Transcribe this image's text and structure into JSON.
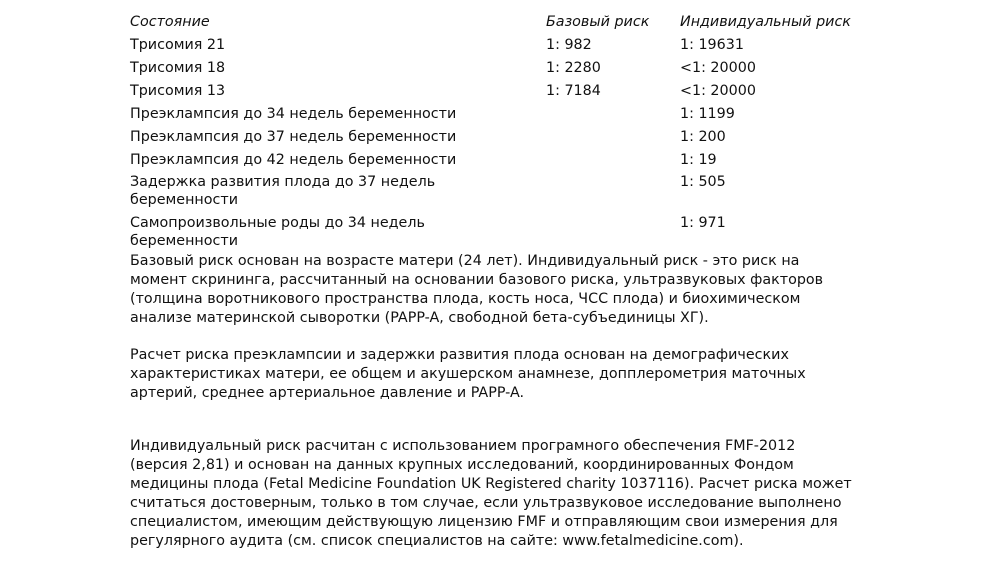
{
  "table": {
    "headers": [
      "Состояние",
      "Базовый риск",
      "Индивидуальный риск"
    ],
    "rows": [
      {
        "condition": "Трисомия 21",
        "base": "1: 982",
        "individual": "1: 19631"
      },
      {
        "condition": "Трисомия 18",
        "base": "1: 2280",
        "individual": "<1: 20000"
      },
      {
        "condition": "Трисомия 13",
        "base": "1: 7184",
        "individual": "<1: 20000"
      },
      {
        "condition": "Преэклампсия до 34 недель беременности",
        "base": "",
        "individual": "1: 1199"
      },
      {
        "condition": "Преэклампсия до 37 недель беременности",
        "base": "",
        "individual": "1: 200"
      },
      {
        "condition": "Преэклампсия до 42 недель беременности",
        "base": "",
        "individual": "1: 19"
      },
      {
        "condition": "Задержка развития плода до 37 недель беременности",
        "base": "",
        "individual": "1: 505"
      },
      {
        "condition": "Самопроизвольные роды до 34 недель беременности",
        "base": "",
        "individual": "1: 971"
      }
    ]
  },
  "paragraphs": [
    [
      "Базовый риск основан на возрасте матери (24 лет). Индивидуальный риск - это риск на",
      "момент скрининга, рассчитанный на основании базового риска, ультразвуковых факторов",
      "(толщина воротникового пространства плода, кость носа, ЧСС плода) и биохимическом",
      "анализе материнской сыворотки (PAPP-A, свободной бета-субъединицы ХГ)."
    ],
    [
      "Расчет риска преэклампсии и задержки развития плода основан на демографических",
      "характеристиках матери, ее общем и акушерском анамнезе, допплерометрия маточных",
      "артерий, среднее артериальное давление и PAPP-A."
    ],
    [
      "Индивидуальный риск расчитан с использованием програмного обеспечения FMF-2012",
      "(версия 2,81) и основан на данных крупных исследований, координированных Фондом",
      "медицины плода (Fetal Medicine Foundation UK Registered charity 1037116). Расчет риска может",
      "считаться достоверным, только в том случае, если ультразвуковое исследование выполнено",
      "специалистом, имеющим действующую лицензию FMF и отправляющим свои измерения для",
      "регулярного аудита (см. список специалистов на сайте: www.fetalmedicine.com)."
    ]
  ]
}
